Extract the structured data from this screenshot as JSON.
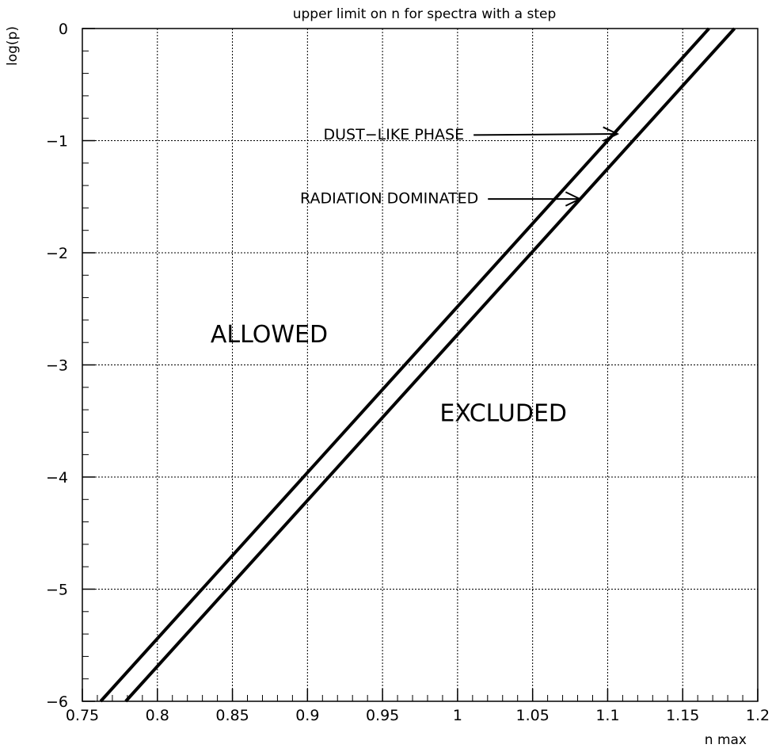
{
  "chart_data": {
    "type": "line",
    "title": "upper limit on n for spectra with a step",
    "xlabel": "n max",
    "ylabel": "log(p)",
    "xlim": [
      0.75,
      1.2
    ],
    "ylim": [
      -6,
      0
    ],
    "grid": true,
    "x_ticks": [
      0.75,
      0.8,
      0.85,
      0.9,
      0.95,
      1,
      1.05,
      1.1,
      1.15,
      1.2
    ],
    "x_tick_labels": [
      "0.75",
      "0.8",
      "0.85",
      "0.9",
      "0.95",
      "1",
      "1.05",
      "1.1",
      "1.15",
      "1.2"
    ],
    "y_ticks": [
      0,
      -1,
      -2,
      -3,
      -4,
      -5,
      -6
    ],
    "y_tick_labels": [
      "0",
      "−1",
      "−2",
      "−3",
      "−4",
      "−5",
      "−6"
    ],
    "series": [
      {
        "x": [
          0.7622,
          1.1675
        ],
        "y": [
          -6,
          0
        ]
      },
      {
        "x": [
          0.7789,
          1.1845
        ],
        "y": [
          -6,
          0
        ]
      }
    ],
    "annotations": [
      {
        "text": "DUST−LIKE PHASE",
        "x": 0.9575,
        "y": -0.95,
        "arrow_to": [
          1.1065,
          -0.94
        ]
      },
      {
        "text": "RADIATION DOMINATED",
        "x": 0.9545,
        "y": -1.52,
        "arrow_to": [
          1.0815,
          -1.52
        ]
      },
      {
        "text": "ALLOWED",
        "x": 0.8745,
        "y": -2.74
      },
      {
        "text": "EXCLUDED",
        "x": 1.0305,
        "y": -3.44
      }
    ],
    "colors": {
      "line": "#000000",
      "grid": "#000000",
      "background": "#ffffff"
    }
  }
}
